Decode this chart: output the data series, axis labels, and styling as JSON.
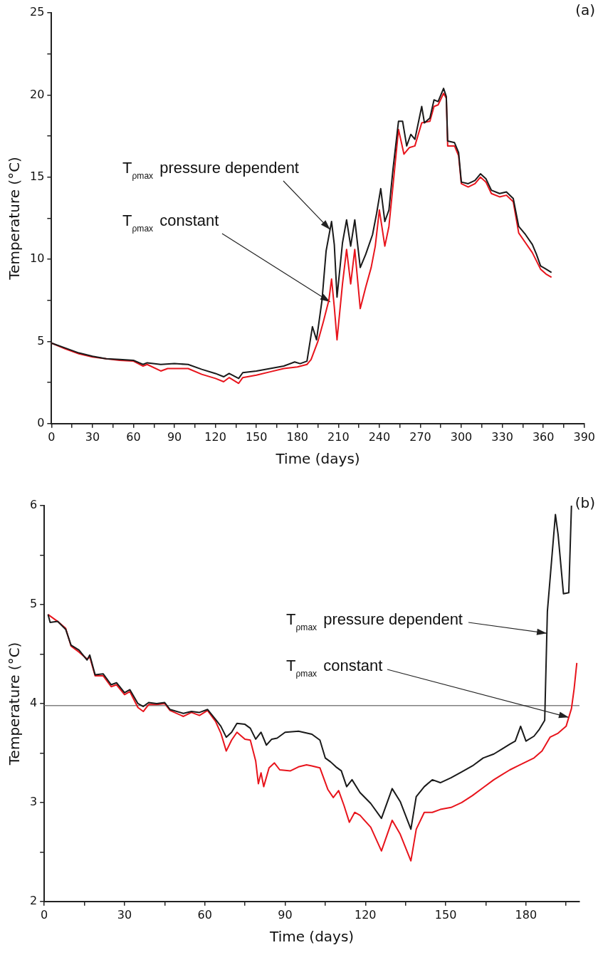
{
  "chart_data": [
    {
      "type": "line",
      "title": "(a)",
      "xlabel": "Time (days)",
      "ylabel": "Temperature (°C)",
      "xlim": [
        0,
        390
      ],
      "ylim": [
        0,
        25
      ],
      "xticks": [
        0,
        {
          "value": 15,
          "label": null
        },
        30,
        {
          "value": 45,
          "label": null
        },
        60,
        {
          "value": 75,
          "label": null
        },
        90,
        {
          "value": 105,
          "label": null
        },
        120,
        {
          "value": 135,
          "label": null
        },
        150,
        {
          "value": 165,
          "label": null
        },
        180,
        {
          "value": 195,
          "label": null
        },
        210,
        {
          "value": 225,
          "label": null
        },
        240,
        {
          "value": 255,
          "label": null
        },
        270,
        {
          "value": 285,
          "label": null
        },
        300,
        {
          "value": 315,
          "label": null
        },
        330,
        {
          "value": 345,
          "label": null
        },
        360,
        {
          "value": 375,
          "label": null
        },
        390
      ],
      "yticks": [
        0,
        {
          "value": 2.5,
          "label": null
        },
        5,
        {
          "value": 7.5,
          "label": null
        },
        10,
        {
          "value": 12.5,
          "label": null
        },
        15,
        {
          "value": 17.5,
          "label": null
        },
        20,
        {
          "value": 22.5,
          "label": null
        },
        25
      ],
      "marker": "none",
      "line_style": "solid",
      "annotations": [
        {
          "text": "T$_{ρmax}$ pressure dependent",
          "x": 204,
          "y": 11.8
        },
        {
          "text": "T$_{ρmax}$ constant",
          "x": 204,
          "y": 7.4
        }
      ],
      "series": [
        {
          "color": "#1a1a1a",
          "x": [
            0,
            10,
            20,
            30,
            40,
            50,
            60,
            67,
            70,
            80,
            90,
            100,
            110,
            120,
            126,
            130,
            137,
            140,
            150,
            160,
            170,
            178,
            182,
            187,
            191,
            194,
            198,
            201,
            205,
            207,
            209,
            213,
            216,
            219,
            222,
            226,
            230,
            235,
            238,
            241,
            244,
            247,
            250,
            254,
            257,
            260,
            263,
            266,
            271,
            273,
            277,
            280,
            283,
            287,
            289,
            290,
            295,
            298,
            300,
            305,
            310,
            314,
            318,
            322,
            328,
            333,
            338,
            342,
            347,
            352,
            355,
            358,
            362,
            366
          ],
          "values": [
            4.9,
            4.6,
            4.3,
            4.1,
            3.95,
            3.9,
            3.85,
            3.6,
            3.7,
            3.6,
            3.65,
            3.6,
            3.3,
            3.05,
            2.85,
            3.05,
            2.75,
            3.1,
            3.2,
            3.35,
            3.5,
            3.75,
            3.65,
            3.8,
            5.9,
            5.1,
            7.5,
            10.5,
            12.3,
            10.9,
            7.7,
            11.0,
            12.4,
            10.8,
            12.4,
            9.5,
            10.3,
            11.5,
            12.8,
            14.3,
            12.3,
            13.0,
            15.5,
            18.4,
            18.4,
            16.9,
            17.6,
            17.3,
            19.3,
            18.3,
            18.6,
            19.7,
            19.6,
            20.4,
            19.9,
            17.2,
            17.1,
            16.5,
            14.7,
            14.6,
            14.8,
            15.2,
            14.9,
            14.2,
            14.0,
            14.1,
            13.7,
            12.0,
            11.5,
            10.9,
            10.3,
            9.6,
            9.4,
            9.2
          ]
        },
        {
          "color": "#e8141c",
          "x": [
            0,
            10,
            20,
            30,
            40,
            50,
            60,
            67,
            70,
            80,
            85,
            100,
            110,
            120,
            126,
            130,
            137,
            140,
            150,
            160,
            170,
            180,
            187,
            190,
            195,
            199,
            203,
            205,
            207,
            209,
            213,
            216,
            219,
            222,
            226,
            230,
            234,
            237,
            240,
            244,
            247,
            250,
            254,
            258,
            262,
            266,
            271,
            277,
            280,
            283,
            287,
            289,
            290,
            295,
            298,
            300,
            305,
            310,
            314,
            318,
            322,
            328,
            333,
            338,
            342,
            347,
            352,
            355,
            358,
            362,
            366
          ],
          "values": [
            4.9,
            4.55,
            4.25,
            4.05,
            3.95,
            3.85,
            3.8,
            3.5,
            3.6,
            3.2,
            3.35,
            3.35,
            3.0,
            2.75,
            2.55,
            2.8,
            2.45,
            2.8,
            2.95,
            3.15,
            3.35,
            3.45,
            3.6,
            3.9,
            5.0,
            6.2,
            7.5,
            8.8,
            7.1,
            5.1,
            8.5,
            10.6,
            8.5,
            10.6,
            7.0,
            8.3,
            9.5,
            10.8,
            13.0,
            10.8,
            12.0,
            14.5,
            17.9,
            16.4,
            16.8,
            16.9,
            18.3,
            18.4,
            19.3,
            19.4,
            20.1,
            19.8,
            16.9,
            16.9,
            16.3,
            14.6,
            14.4,
            14.6,
            15.0,
            14.7,
            14.0,
            13.8,
            13.9,
            13.5,
            11.6,
            11.0,
            10.4,
            9.9,
            9.4,
            9.1,
            8.9
          ]
        }
      ]
    },
    {
      "type": "line",
      "title": "(b)",
      "xlabel": "Time (days)",
      "ylabel": "Temperature (°C)",
      "xlim": [
        0,
        200
      ],
      "ylim": [
        2,
        6
      ],
      "xticks": [
        0,
        {
          "value": 15,
          "label": null
        },
        30,
        {
          "value": 45,
          "label": null
        },
        60,
        {
          "value": 75,
          "label": null
        },
        90,
        {
          "value": 105,
          "label": null
        },
        120,
        {
          "value": 135,
          "label": null
        },
        150,
        {
          "value": 165,
          "label": null
        },
        180,
        {
          "value": 195,
          "label": null
        }
      ],
      "yticks": [
        2,
        {
          "value": 2.5,
          "label": null
        },
        3,
        {
          "value": 3.5,
          "label": null
        },
        4,
        {
          "value": 4.5,
          "label": null
        },
        5,
        {
          "value": 5.5,
          "label": null
        },
        6
      ],
      "marker": "none",
      "line_style": "solid",
      "ref_lines": [
        {
          "axis": "y",
          "value": 3.98,
          "color": "#808080"
        }
      ],
      "annotations": [
        {
          "text": "T$_{ρmax}$ pressure dependent",
          "x": 187.8,
          "y": 4.71
        },
        {
          "text": "T$_{ρmax}$ constant",
          "x": 196,
          "y": 3.86
        }
      ],
      "series": [
        {
          "color": "#1a1a1a",
          "x": [
            1.4,
            2.2,
            5,
            8,
            10,
            13,
            16,
            17,
            19,
            22,
            25,
            27,
            30,
            32,
            35,
            37,
            39,
            42,
            45,
            47,
            52,
            55,
            58,
            61,
            64,
            66,
            68,
            70,
            72,
            75,
            77,
            79,
            81,
            83,
            85,
            87,
            90,
            95,
            100,
            103,
            105,
            107,
            109,
            111,
            113,
            115,
            118,
            122,
            126,
            130,
            133,
            137,
            139,
            142,
            145,
            148,
            152,
            156,
            160,
            164,
            168,
            171,
            174,
            176,
            178,
            180,
            183,
            185,
            187,
            188,
            191,
            192,
            194,
            196,
            197
          ],
          "values": [
            4.9,
            4.82,
            4.83,
            4.75,
            4.59,
            4.54,
            4.44,
            4.49,
            4.29,
            4.3,
            4.19,
            4.21,
            4.11,
            4.14,
            4.0,
            3.97,
            4.01,
            4.0,
            4.01,
            3.94,
            3.9,
            3.92,
            3.91,
            3.94,
            3.84,
            3.77,
            3.66,
            3.71,
            3.8,
            3.79,
            3.75,
            3.64,
            3.71,
            3.58,
            3.64,
            3.65,
            3.71,
            3.72,
            3.69,
            3.63,
            3.45,
            3.41,
            3.36,
            3.32,
            3.16,
            3.23,
            3.1,
            2.99,
            2.84,
            3.14,
            3.01,
            2.73,
            3.06,
            3.16,
            3.23,
            3.2,
            3.25,
            3.31,
            3.37,
            3.45,
            3.49,
            3.54,
            3.59,
            3.62,
            3.77,
            3.62,
            3.67,
            3.74,
            3.83,
            4.93,
            5.91,
            5.71,
            5.11,
            5.12,
            6.0
          ]
        },
        {
          "color": "#e8141c",
          "x": [
            1.4,
            5,
            8,
            10,
            13,
            16,
            17,
            19,
            22,
            25,
            27,
            30,
            32,
            35,
            37,
            39,
            42,
            45,
            47,
            52,
            55,
            58,
            61,
            64,
            66,
            68,
            70,
            72,
            75,
            77,
            79,
            80,
            81,
            82,
            84,
            86,
            88,
            92,
            95,
            98,
            100,
            103,
            106,
            108,
            110,
            112,
            114,
            116,
            118,
            122,
            126,
            130,
            133,
            137,
            139,
            142,
            145,
            148,
            152,
            156,
            160,
            164,
            168,
            171,
            174,
            177,
            180,
            183,
            186,
            189,
            192,
            195,
            197,
            198,
            199
          ],
          "values": [
            4.9,
            4.83,
            4.76,
            4.58,
            4.52,
            4.45,
            4.47,
            4.28,
            4.28,
            4.17,
            4.19,
            4.09,
            4.12,
            3.96,
            3.92,
            3.99,
            3.99,
            4.0,
            3.93,
            3.87,
            3.91,
            3.88,
            3.93,
            3.82,
            3.7,
            3.52,
            3.63,
            3.71,
            3.64,
            3.63,
            3.42,
            3.19,
            3.3,
            3.16,
            3.35,
            3.4,
            3.33,
            3.32,
            3.36,
            3.38,
            3.37,
            3.35,
            3.13,
            3.05,
            3.12,
            2.97,
            2.8,
            2.9,
            2.87,
            2.75,
            2.51,
            2.82,
            2.68,
            2.41,
            2.73,
            2.9,
            2.9,
            2.93,
            2.95,
            3.0,
            3.07,
            3.15,
            3.23,
            3.28,
            3.33,
            3.37,
            3.41,
            3.45,
            3.52,
            3.66,
            3.7,
            3.77,
            3.95,
            4.15,
            4.41
          ]
        }
      ]
    }
  ]
}
